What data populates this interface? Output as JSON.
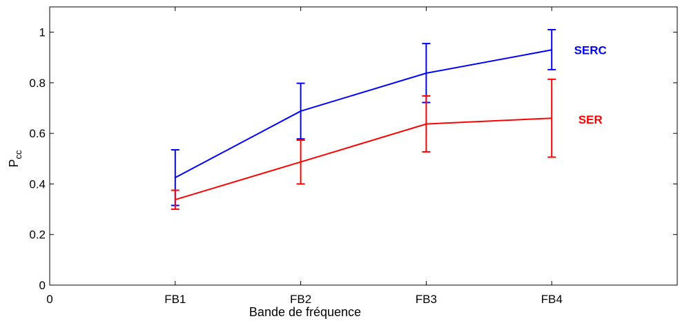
{
  "chart_data": {
    "type": "line",
    "title": "",
    "xlabel": "Bande de fréquence",
    "ylabel": "P",
    "ylabel_subscript": "cc",
    "categories": [
      "FB1",
      "FB2",
      "FB3",
      "FB4"
    ],
    "xlim": [
      0,
      5
    ],
    "ylim": [
      0,
      1.1
    ],
    "x_ticks": [
      "0",
      "FB1",
      "FB2",
      "FB3",
      "FB4"
    ],
    "y_ticks": [
      "0",
      "0.2",
      "0.4",
      "0.6",
      "0.8",
      "1"
    ],
    "grid": false,
    "legend": "direct labels at right of lines",
    "series": [
      {
        "name": "SERC",
        "color": "#0000ff",
        "values": [
          0.425,
          0.688,
          0.838,
          0.93
        ],
        "err_low": [
          0.315,
          0.578,
          0.722,
          0.852
        ],
        "err_high": [
          0.535,
          0.798,
          0.955,
          1.01
        ]
      },
      {
        "name": "SER",
        "color": "#ff0000",
        "values": [
          0.338,
          0.487,
          0.637,
          0.66
        ],
        "err_low": [
          0.3,
          0.4,
          0.527,
          0.506
        ],
        "err_high": [
          0.375,
          0.573,
          0.748,
          0.814
        ]
      }
    ]
  }
}
